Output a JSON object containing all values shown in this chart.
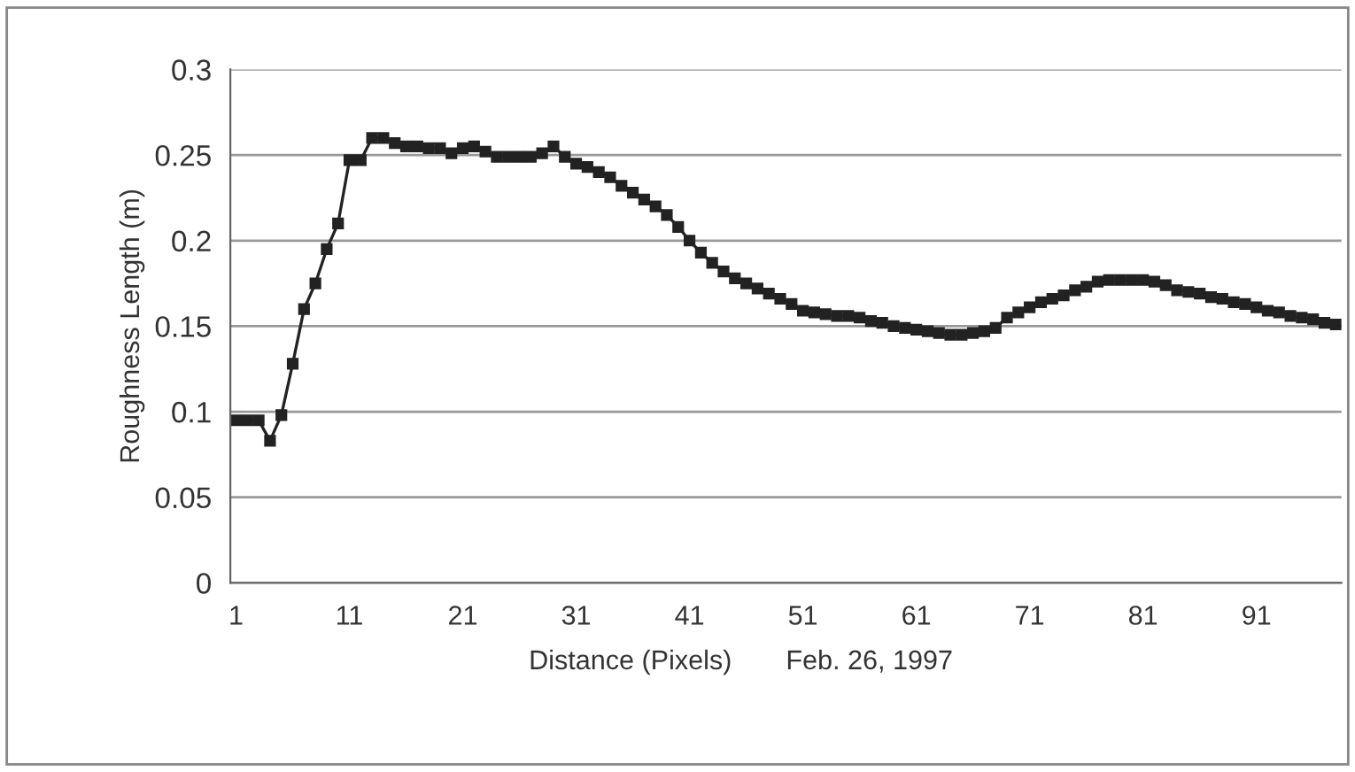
{
  "chart_data": {
    "type": "line",
    "xlabel": "Distance (Pixels)",
    "ylabel": "Roughness Length (m)",
    "annotations": [
      "Feb. 26, 1997"
    ],
    "categories": [
      "1",
      null,
      null,
      null,
      null,
      null,
      null,
      null,
      null,
      null,
      "11",
      null,
      null,
      null,
      null,
      null,
      null,
      null,
      null,
      null,
      "21",
      null,
      null,
      null,
      null,
      null,
      null,
      null,
      null,
      null,
      "31",
      null,
      null,
      null,
      null,
      null,
      null,
      null,
      null,
      null,
      "41",
      null,
      null,
      null,
      null,
      null,
      null,
      null,
      null,
      null,
      "51",
      null,
      null,
      null,
      null,
      null,
      null,
      null,
      null,
      null,
      "61",
      null,
      null,
      null,
      null,
      null,
      null,
      null,
      null,
      null,
      "71",
      null,
      null,
      null,
      null,
      null,
      null,
      null,
      null,
      null,
      "81",
      null,
      null,
      null,
      null,
      null,
      null,
      null,
      null,
      null,
      "91",
      null,
      null,
      null,
      null,
      null,
      null,
      null
    ],
    "series": [
      {
        "color": "#222222",
        "values": [
          0.095,
          0.095,
          0.095,
          0.083,
          0.098,
          0.128,
          0.16,
          0.175,
          0.195,
          0.21,
          0.247,
          0.247,
          0.26,
          0.26,
          0.257,
          0.255,
          0.255,
          0.254,
          0.254,
          0.251,
          0.254,
          0.255,
          0.252,
          0.249,
          0.249,
          0.249,
          0.249,
          0.251,
          0.255,
          0.249,
          0.245,
          0.243,
          0.24,
          0.237,
          0.232,
          0.228,
          0.224,
          0.22,
          0.215,
          0.208,
          0.2,
          0.193,
          0.187,
          0.182,
          0.178,
          0.175,
          0.172,
          0.169,
          0.166,
          0.163,
          0.159,
          0.158,
          0.157,
          0.156,
          0.156,
          0.155,
          0.153,
          0.152,
          0.15,
          0.149,
          0.148,
          0.147,
          0.146,
          0.145,
          0.145,
          0.146,
          0.147,
          0.149,
          0.155,
          0.158,
          0.161,
          0.164,
          0.166,
          0.168,
          0.171,
          0.173,
          0.176,
          0.177,
          0.177,
          0.177,
          0.177,
          0.176,
          0.174,
          0.171,
          0.17,
          0.169,
          0.167,
          0.166,
          0.164,
          0.163,
          0.161,
          0.159,
          0.158,
          0.156,
          0.155,
          0.154,
          0.152,
          0.151
        ]
      }
    ],
    "ylim": [
      0,
      0.3
    ],
    "yticks": [
      0,
      0.05,
      0.1,
      0.15,
      0.2,
      0.25,
      0.3
    ],
    "grid": "y",
    "marker": "square",
    "line_style": "solid",
    "legend": false
  }
}
